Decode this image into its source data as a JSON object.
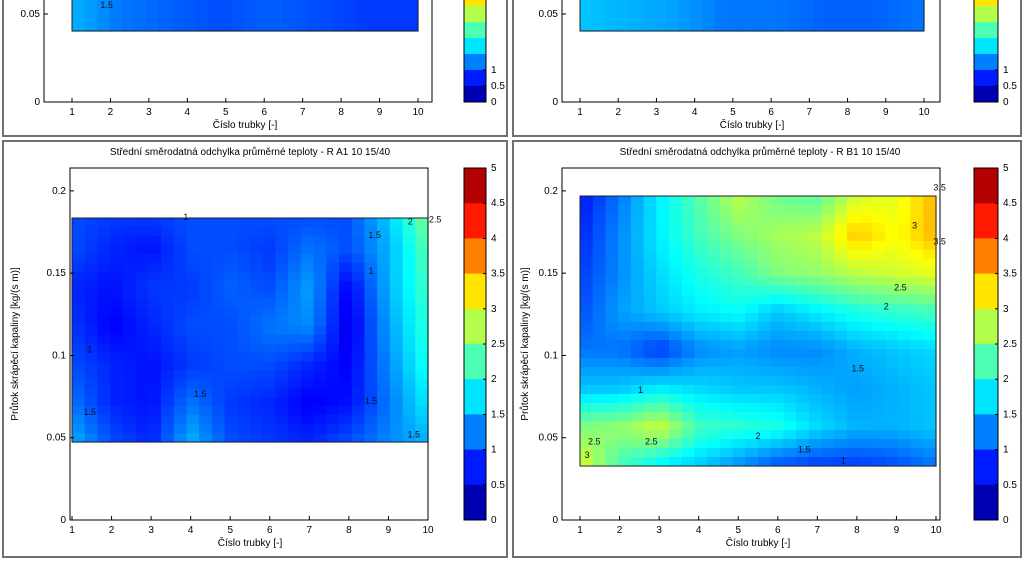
{
  "chart_data": [
    {
      "type": "heatmap",
      "title": "",
      "xlabel": "Číslo trubky [-]",
      "ylabel": "",
      "xlim": [
        1,
        10
      ],
      "ylim": [
        0,
        0.05
      ],
      "x_ticks": [
        "1",
        "2",
        "3",
        "4",
        "5",
        "6",
        "7",
        "8",
        "9",
        "10"
      ],
      "y_ticks": [
        "0",
        "0.05"
      ],
      "colorbar_ticks": [
        "0",
        "0.5",
        "1"
      ],
      "contour_labels": [
        "1.5"
      ],
      "x": [
        1,
        2,
        3,
        4,
        5,
        6,
        7,
        8
      ],
      "y": [
        0.05
      ],
      "z": [
        [
          1.5,
          1.2,
          1.1,
          1.0,
          1.1,
          1.0,
          0.9,
          0.9
        ]
      ]
    },
    {
      "type": "heatmap",
      "title": "",
      "xlabel": "Číslo trubky [-]",
      "ylabel": "",
      "xlim": [
        1,
        10
      ],
      "ylim": [
        0,
        0.05
      ],
      "x_ticks": [
        "1",
        "2",
        "3",
        "4",
        "5",
        "6",
        "7",
        "8",
        "9",
        "10"
      ],
      "y_ticks": [
        "0",
        "0.05"
      ],
      "colorbar_ticks": [
        "0",
        "0.5",
        "1"
      ],
      "contour_labels": [],
      "x": [
        1,
        2,
        3,
        4,
        5,
        6,
        7,
        8
      ],
      "y": [
        0.05
      ],
      "z": [
        [
          1.6,
          1.5,
          1.4,
          1.2,
          1.2,
          1.1,
          1.1,
          1.2
        ]
      ]
    },
    {
      "type": "heatmap",
      "title": "Střední směrodatná odchylka průměrné teploty - R  A1 10  15/40",
      "xlabel": "Číslo trubky [-]",
      "ylabel": "Průtok skrápěcí kapaliny [kg/(s m)]",
      "xlim": [
        1,
        10
      ],
      "ylim": [
        0,
        0.2
      ],
      "x_ticks": [
        "1",
        "2",
        "3",
        "4",
        "5",
        "6",
        "7",
        "8",
        "9",
        "10"
      ],
      "y_ticks": [
        "0",
        "0.05",
        "0.1",
        "0.15",
        "0.2"
      ],
      "colorbar_ticks": [
        "0",
        "0.5",
        "1",
        "1.5",
        "2",
        "2.5",
        "3",
        "3.5",
        "4",
        "4.5",
        "5"
      ],
      "contour_labels": [
        "1",
        "2",
        "2.5",
        "1.5",
        "1",
        "1",
        "1.5",
        "1.5",
        "1.5",
        "1.5"
      ],
      "x": [
        1,
        2,
        3,
        4,
        5,
        6,
        7,
        8,
        9,
        10
      ],
      "y": [
        0.05,
        0.075,
        0.1,
        0.125,
        0.15,
        0.175,
        0.195
      ],
      "z": [
        [
          1.5,
          1.0,
          0.8,
          1.5,
          1.0,
          0.9,
          0.8,
          1.0,
          1.3,
          1.5
        ],
        [
          1.2,
          0.8,
          0.7,
          1.2,
          0.9,
          0.8,
          0.6,
          0.7,
          1.2,
          1.8
        ],
        [
          1.0,
          0.8,
          0.7,
          0.9,
          1.0,
          1.0,
          0.8,
          0.6,
          1.3,
          2.0
        ],
        [
          0.9,
          0.6,
          0.8,
          1.0,
          1.0,
          1.2,
          1.3,
          0.5,
          1.4,
          2.1
        ],
        [
          0.8,
          0.7,
          0.9,
          0.9,
          1.1,
          1.0,
          1.4,
          0.6,
          1.5,
          2.2
        ],
        [
          1.0,
          0.8,
          0.7,
          1.0,
          1.0,
          0.9,
          1.2,
          1.0,
          1.5,
          2.3
        ],
        [
          1.0,
          0.9,
          0.9,
          1.0,
          1.0,
          1.0,
          1.0,
          1.0,
          1.6,
          2.5
        ]
      ]
    },
    {
      "type": "heatmap",
      "title": "Střední směrodatná odchylka průměrné teploty - R  B1 10  15/40",
      "xlabel": "Číslo trubky [-]",
      "ylabel": "Průtok skrápěcí kapaliny [kg/(s m)]",
      "xlim": [
        1,
        10
      ],
      "ylim": [
        0,
        0.2
      ],
      "x_ticks": [
        "1",
        "2",
        "3",
        "4",
        "5",
        "6",
        "7",
        "8",
        "9",
        "10"
      ],
      "y_ticks": [
        "0",
        "0.05",
        "0.1",
        "0.15",
        "0.2"
      ],
      "colorbar_ticks": [
        "0",
        "0.5",
        "1",
        "1.5",
        "2",
        "2.5",
        "3",
        "3.5",
        "4",
        "4.5",
        "5"
      ],
      "contour_labels": [
        "3.5",
        "3",
        "3.5",
        "2.5",
        "2",
        "1.5",
        "1",
        "2.5",
        "2.5",
        "2",
        "1.5",
        "1",
        "3"
      ],
      "x": [
        1,
        2,
        3,
        4,
        5,
        6,
        7,
        8,
        9,
        10
      ],
      "y": [
        0.035,
        0.06,
        0.085,
        0.11,
        0.135,
        0.16,
        0.185,
        0.21
      ],
      "z": [
        [
          3.0,
          2.2,
          1.8,
          1.6,
          1.3,
          1.0,
          0.9,
          0.9,
          1.0,
          1.2
        ],
        [
          2.5,
          2.6,
          2.9,
          2.2,
          2.1,
          2.0,
          1.7,
          1.5,
          1.5,
          1.6
        ],
        [
          1.6,
          1.6,
          1.8,
          1.7,
          1.6,
          1.6,
          1.5,
          1.4,
          1.5,
          1.6
        ],
        [
          1.2,
          1.2,
          0.9,
          1.3,
          1.4,
          1.3,
          1.3,
          1.5,
          1.6,
          1.7
        ],
        [
          1.0,
          1.4,
          1.6,
          1.8,
          1.9,
          1.6,
          1.8,
          2.0,
          2.1,
          2.2
        ],
        [
          0.9,
          1.3,
          1.7,
          2.0,
          2.2,
          2.5,
          2.6,
          2.8,
          2.9,
          3.0
        ],
        [
          0.8,
          1.3,
          1.8,
          2.2,
          2.5,
          2.7,
          2.8,
          3.4,
          3.1,
          3.5
        ],
        [
          0.7,
          1.2,
          1.8,
          2.3,
          2.8,
          2.4,
          2.3,
          2.9,
          3.0,
          3.5
        ]
      ]
    }
  ]
}
